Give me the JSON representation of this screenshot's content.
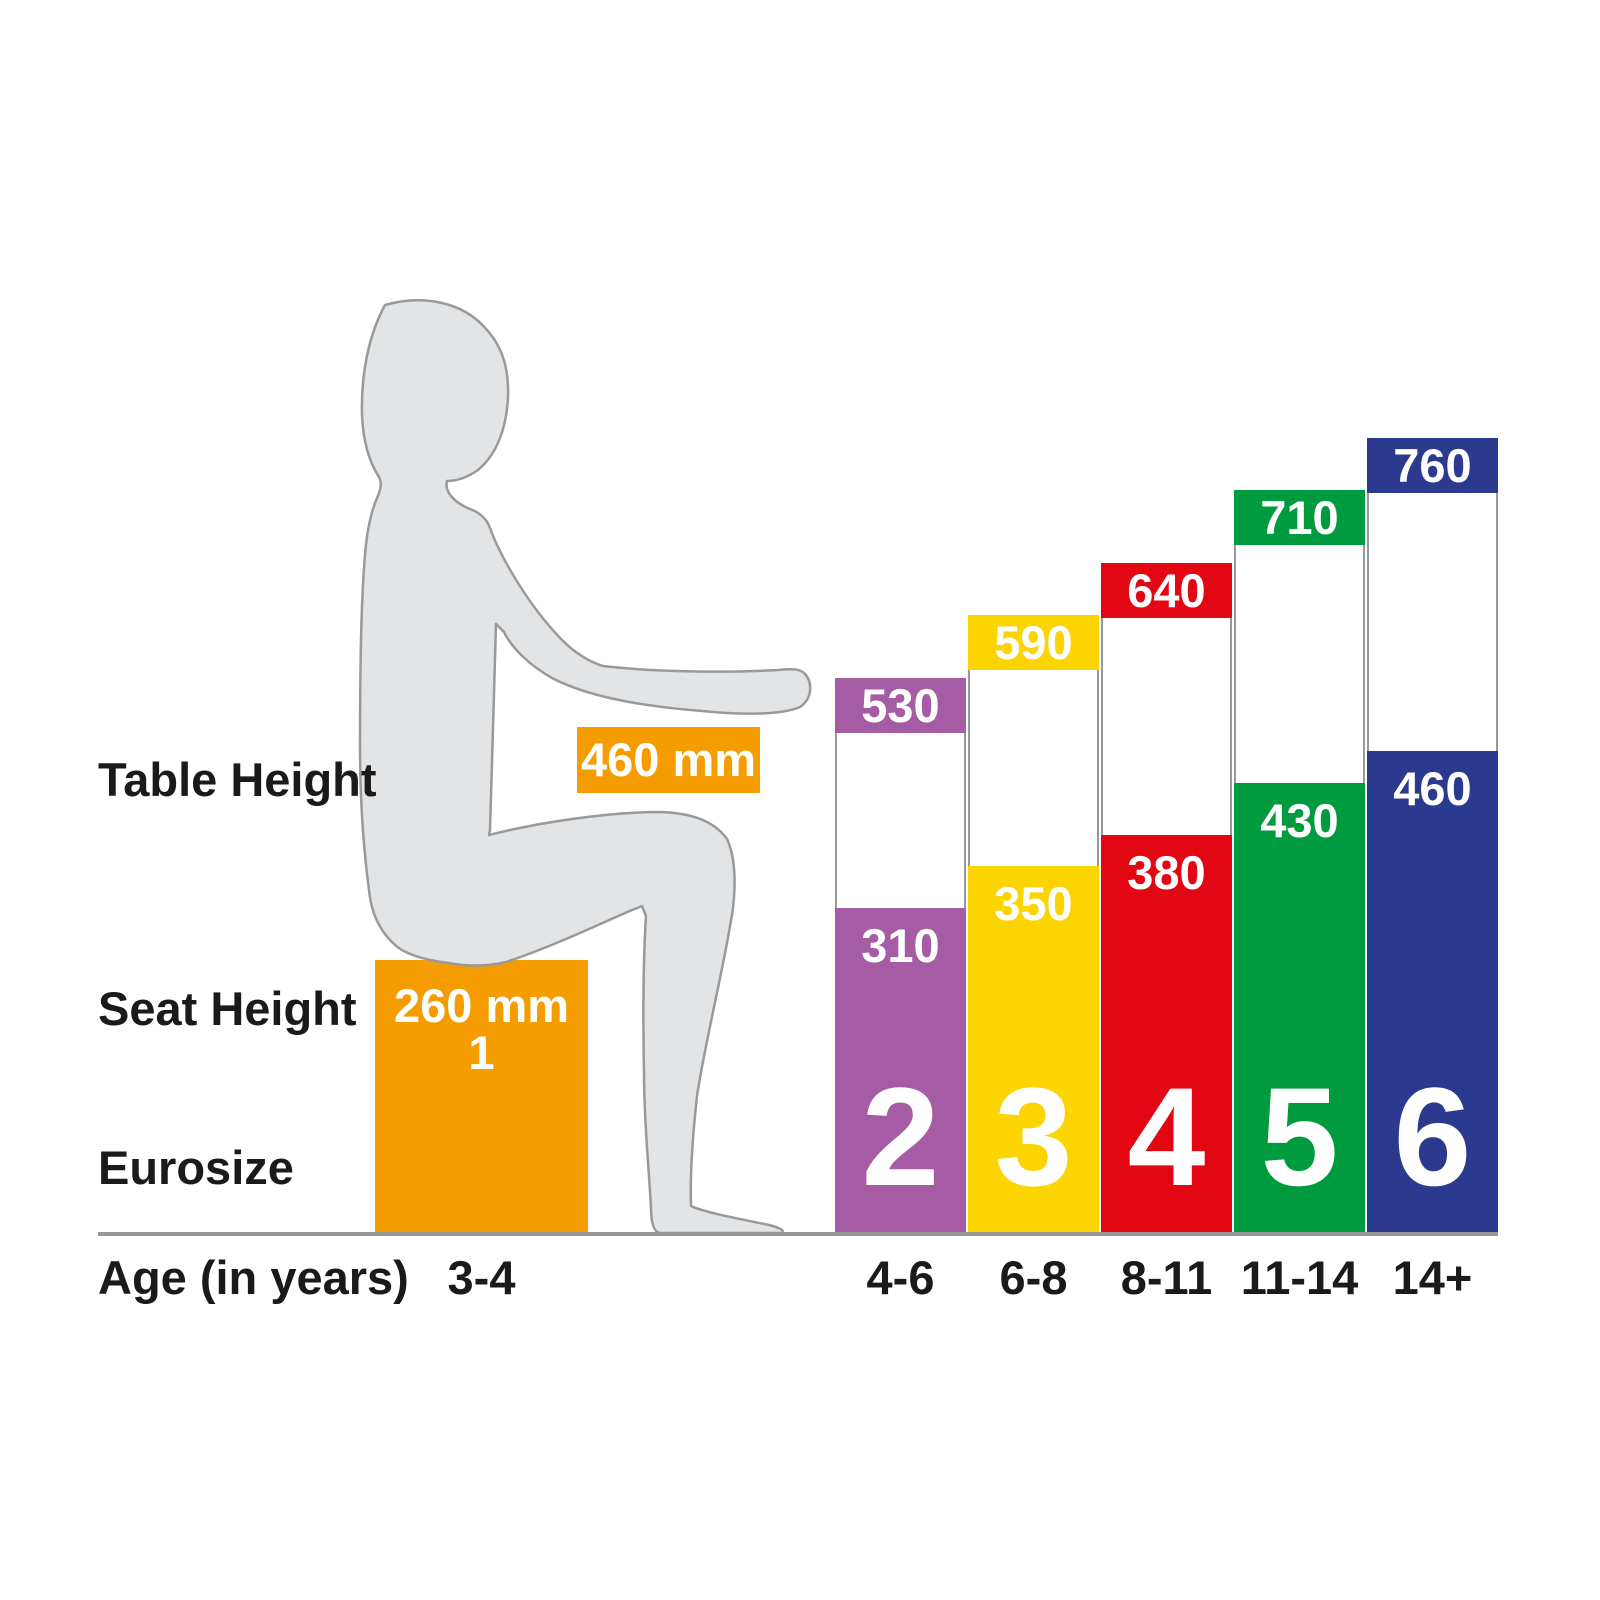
{
  "page": {
    "background": "#FFFFFF"
  },
  "labels": {
    "table_height": "Table Height",
    "seat_height": "Seat Height",
    "eurosize": "Eurosize",
    "age": "Age (in years)"
  },
  "palette": {
    "floor_gray": "#97999B",
    "silhouette_fill": "#E3E4E5",
    "silhouette_outline": "#97999B",
    "text_black": "#1A1A1A",
    "value_text": "#FFFFFF"
  },
  "chart_data": {
    "type": "bar",
    "title": "",
    "unit": "mm",
    "categories": [
      "3-4",
      "4-6",
      "6-8",
      "8-11",
      "11-14",
      "14+"
    ],
    "series": [
      {
        "name": "Table Height",
        "values": [
          460,
          530,
          590,
          640,
          710,
          760
        ]
      },
      {
        "name": "Seat Height",
        "values": [
          260,
          310,
          350,
          380,
          430,
          460
        ]
      }
    ],
    "legend": false,
    "grid": false,
    "sizes": [
      {
        "eurosize": "1",
        "age": "3-4",
        "table_label": "460 mm",
        "seat_label": "260 mm",
        "table_mm": 460,
        "seat_mm": 260,
        "color": "#F59C00"
      },
      {
        "eurosize": "2",
        "age": "4-6",
        "table_label": "530",
        "seat_label": "310",
        "table_mm": 530,
        "seat_mm": 310,
        "color": "#A55CA5"
      },
      {
        "eurosize": "3",
        "age": "6-8",
        "table_label": "590",
        "seat_label": "350",
        "table_mm": 590,
        "seat_mm": 350,
        "color": "#FCD400"
      },
      {
        "eurosize": "4",
        "age": "8-11",
        "table_label": "640",
        "seat_label": "380",
        "table_mm": 640,
        "seat_mm": 380,
        "color": "#E30613"
      },
      {
        "eurosize": "5",
        "age": "11-14",
        "table_label": "710",
        "seat_label": "430",
        "table_mm": 710,
        "seat_mm": 430,
        "color": "#009B3E"
      },
      {
        "eurosize": "6",
        "age": "14+",
        "table_label": "760",
        "seat_label": "460",
        "table_mm": 760,
        "seat_mm": 460,
        "color": "#2B3A8E"
      }
    ]
  }
}
